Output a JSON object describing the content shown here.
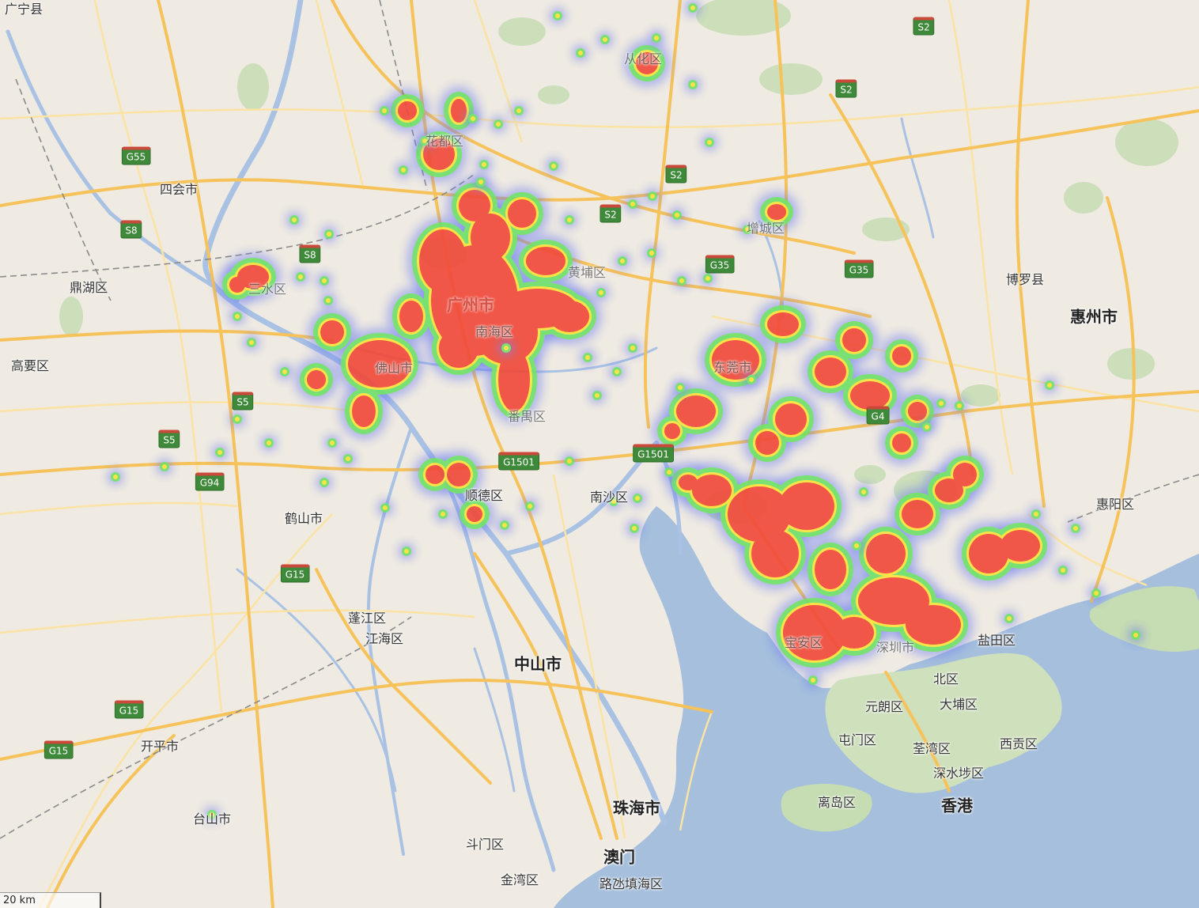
{
  "map": {
    "colors": {
      "land": "#efeae2",
      "water": "#a5bfdd",
      "river": "#a9c2e4",
      "green": "#c6dcb3",
      "road_major": "#f6c25a",
      "road_minor": "#fbe3a4",
      "heat_core": "#f04a3a",
      "heat_mid": "#ffe23a",
      "heat_edge": "#6fe06a",
      "heat_halo": "#6a7cf0"
    },
    "scale_label": "20 km",
    "city_labels": [
      "广州市",
      "惠州市",
      "中山市",
      "珠海市",
      "澳门",
      "香港"
    ],
    "place_labels": [
      "广宁县",
      "四会市",
      "鼎湖区",
      "高要区",
      "鹤山市",
      "开平市",
      "台山市",
      "蓬江区",
      "江海区",
      "斗门区",
      "金湾区",
      "路氹填海区",
      "顺德区",
      "南沙区",
      "博罗县",
      "惠阳区",
      "北区",
      "元朗区",
      "大埔区",
      "屯门区",
      "荃湾区",
      "西贡区",
      "深水埗区",
      "离岛区",
      "盐田区",
      "从化区",
      "花都区",
      "增城区",
      "黄埔区",
      "番禺区",
      "佛山市",
      "南海区",
      "三水区",
      "东莞市",
      "深圳市",
      "宝安区"
    ],
    "highway_shields": [
      "S2",
      "S2",
      "S2",
      "S2",
      "G55",
      "S8",
      "S8",
      "G35",
      "G35",
      "S5",
      "S5",
      "G94",
      "G15",
      "G15",
      "G15",
      "G1501",
      "G1501",
      "G4"
    ],
    "heatmap_clusters": [
      {
        "name": "广州",
        "intensity": 1.0
      },
      {
        "name": "佛山",
        "intensity": 0.9
      },
      {
        "name": "东莞",
        "intensity": 0.85
      },
      {
        "name": "深圳",
        "intensity": 1.0
      }
    ]
  }
}
